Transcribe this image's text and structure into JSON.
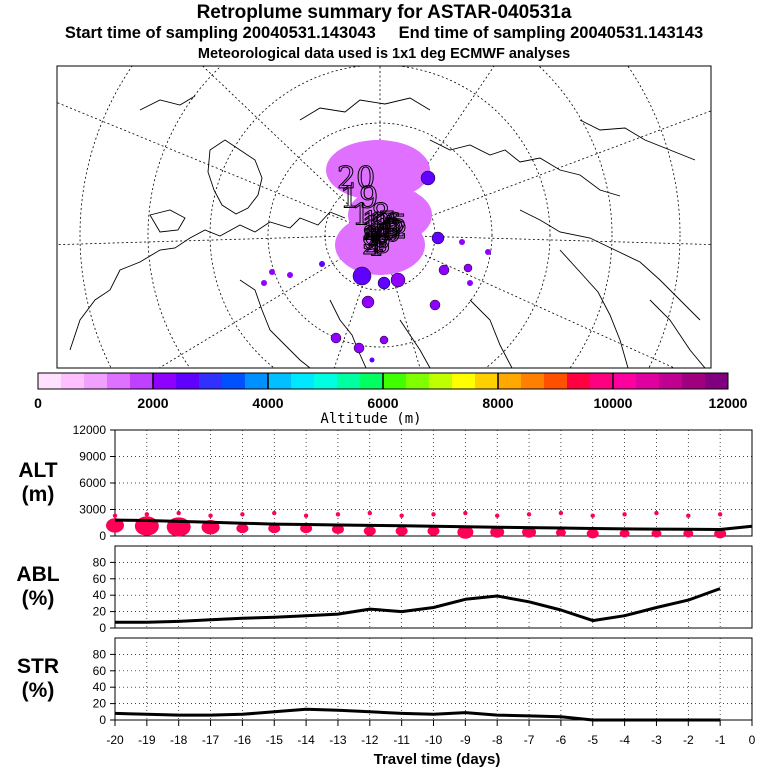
{
  "title": "Retroplume summary for ASTAR-040531a",
  "start_time": "Start time of sampling 20040531.143043",
  "end_time": "End time of sampling 20040531.143143",
  "met_data": "Meteorological data used is 1x1 deg ECMWF analyses",
  "map": {
    "cluster_labels": [
      "20",
      "19",
      "18",
      "17",
      "16",
      "15",
      "14",
      "13",
      "12",
      "11",
      "10",
      "9",
      "8",
      "7",
      "6",
      "5",
      "4",
      "3",
      "2",
      "1"
    ],
    "big_label": "20",
    "label_b": "19",
    "label_c": "18"
  },
  "colorbar": {
    "label": "Altitude (m)",
    "ticks": [
      "0",
      "2000",
      "4000",
      "6000",
      "8000",
      "10000",
      "12000"
    ],
    "colors": [
      "#ffe0ff",
      "#ffc0ff",
      "#f0a0ff",
      "#e070ff",
      "#c040ff",
      "#9000ff",
      "#6000ff",
      "#3030ff",
      "#0050ff",
      "#0090ff",
      "#00c0ff",
      "#00e8ff",
      "#00ffe0",
      "#00ffa0",
      "#00ff60",
      "#40ff00",
      "#80ff00",
      "#c0ff00",
      "#ffff00",
      "#ffd000",
      "#ffa800",
      "#ff8000",
      "#ff5000",
      "#ff0040",
      "#ff0080",
      "#ff00a0",
      "#e000a0",
      "#c00090",
      "#a00080",
      "#800080"
    ]
  },
  "chart_data": [
    {
      "type": "line",
      "panel": "ALT",
      "ylabel": "ALT (m)",
      "ylabel_lines": [
        "ALT",
        "(m)"
      ],
      "ylim": [
        0,
        12000
      ],
      "yticks": [
        "0",
        "3000",
        "6000",
        "9000",
        "12000"
      ],
      "x": [
        -20,
        -19,
        -18,
        -17,
        -16,
        -15,
        -14,
        -13,
        -12,
        -11,
        -10,
        -9,
        -8,
        -7,
        -6,
        -5,
        -4,
        -3,
        -2,
        -1,
        0
      ],
      "values": [
        1800,
        1750,
        1650,
        1550,
        1450,
        1350,
        1300,
        1250,
        1200,
        1150,
        1100,
        1050,
        1000,
        950,
        900,
        850,
        800,
        780,
        760,
        740,
        1100
      ],
      "markers": {
        "x": [
          -20,
          -19,
          -18,
          -17,
          -16,
          -15,
          -14,
          -13,
          -12,
          -11,
          -10,
          -9,
          -8,
          -7,
          -6,
          -5,
          -4,
          -3,
          -2,
          -1
        ],
        "values": [
          1400,
          1400,
          1300,
          1200,
          1000,
          1000,
          1000,
          900,
          700,
          700,
          700,
          600,
          600,
          600,
          500,
          400,
          400,
          400,
          400,
          400
        ],
        "sizes": [
          9,
          12,
          12,
          9,
          6,
          6,
          6,
          6,
          6,
          6,
          6,
          8,
          7,
          7,
          5,
          6,
          5,
          5,
          5,
          6
        ]
      },
      "color": "#ff0055"
    },
    {
      "type": "line",
      "panel": "ABL",
      "ylabel": "ABL (%)",
      "ylabel_lines": [
        "ABL",
        "(%)"
      ],
      "ylim": [
        0,
        100
      ],
      "yticks": [
        "0",
        "20",
        "40",
        "60",
        "80"
      ],
      "x": [
        -20,
        -19,
        -18,
        -17,
        -16,
        -15,
        -14,
        -13,
        -12,
        -11,
        -10,
        -9,
        -8,
        -7,
        -6,
        -5,
        -4,
        -3,
        -2,
        -1
      ],
      "values": [
        7,
        7,
        8,
        10,
        12,
        13,
        15,
        17,
        23,
        20,
        25,
        35,
        39,
        32,
        22,
        9,
        15,
        25,
        34,
        48
      ]
    },
    {
      "type": "line",
      "panel": "STR",
      "ylabel": "STR (%)",
      "ylabel_lines": [
        "STR",
        "(%)"
      ],
      "ylim": [
        0,
        100
      ],
      "yticks": [
        "0",
        "20",
        "40",
        "60",
        "80"
      ],
      "x": [
        -20,
        -19,
        -18,
        -17,
        -16,
        -15,
        -14,
        -13,
        -12,
        -11,
        -10,
        -9,
        -8,
        -7,
        -6,
        -5,
        -4,
        -3,
        -2,
        -1
      ],
      "values": [
        8,
        7,
        6,
        6,
        7,
        10,
        13,
        12,
        10,
        8,
        7,
        9,
        6,
        5,
        4,
        0,
        0,
        0,
        0,
        0
      ]
    }
  ],
  "x_axis": {
    "label": "Travel time (days)",
    "ticks": [
      "-20",
      "-19",
      "-18",
      "-17",
      "-16",
      "-15",
      "-14",
      "-13",
      "-12",
      "-11",
      "-10",
      "-9",
      "-8",
      "-7",
      "-6",
      "-5",
      "-4",
      "-3",
      "-2",
      "-1",
      "0"
    ]
  }
}
